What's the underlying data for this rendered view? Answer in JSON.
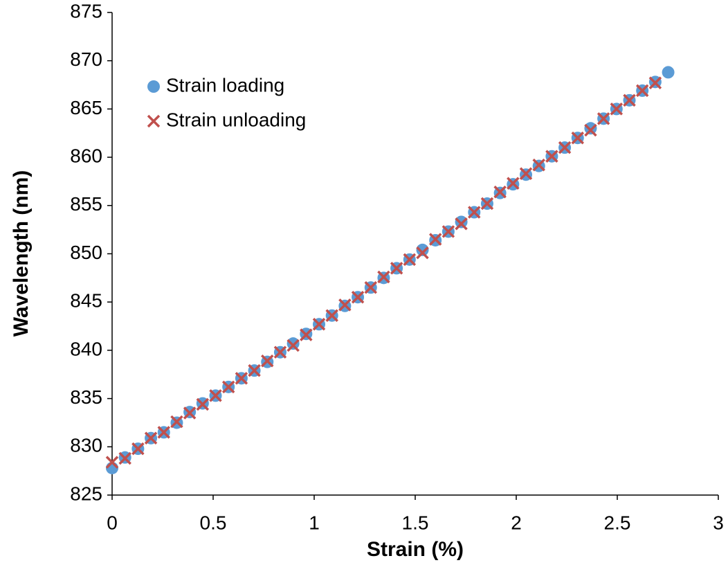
{
  "chart_data": {
    "type": "scatter",
    "x_label": "Strain (%)",
    "y_label": "Wavelength (nm)",
    "xlim": [
      0,
      3
    ],
    "xticks": [
      0,
      0.5,
      1,
      1.5,
      2,
      2.5,
      3
    ],
    "ylim": [
      825,
      875
    ],
    "yticks": [
      825,
      830,
      835,
      840,
      845,
      850,
      855,
      860,
      865,
      870,
      875
    ],
    "grid": false,
    "legend": "upper left",
    "series": [
      {
        "name": "Strain loading",
        "color": "#5b9bd5",
        "marker": "circle",
        "x": [
          0,
          0.064,
          0.128,
          0.192,
          0.256,
          0.32,
          0.384,
          0.448,
          0.512,
          0.576,
          0.64,
          0.704,
          0.768,
          0.832,
          0.896,
          0.96,
          1.024,
          1.088,
          1.152,
          1.216,
          1.28,
          1.344,
          1.408,
          1.472,
          1.536,
          1.6,
          1.664,
          1.728,
          1.792,
          1.856,
          1.92,
          1.984,
          2.048,
          2.112,
          2.176,
          2.24,
          2.304,
          2.368,
          2.432,
          2.496,
          2.56,
          2.624,
          2.688,
          2.752
        ],
        "values": [
          827.8,
          828.9,
          829.8,
          830.9,
          831.5,
          832.5,
          833.6,
          834.5,
          835.3,
          836.2,
          837.1,
          837.9,
          838.8,
          839.8,
          840.7,
          841.7,
          842.7,
          843.6,
          844.6,
          845.5,
          846.5,
          847.5,
          848.5,
          849.4,
          850.4,
          851.4,
          852.3,
          853.3,
          854.3,
          855.2,
          856.3,
          857.2,
          858.2,
          859.1,
          860.1,
          861.0,
          862.0,
          863.0,
          864.0,
          865.0,
          865.9,
          866.9,
          867.8,
          868.8
        ]
      },
      {
        "name": "Strain unloading",
        "color": "#c0504d",
        "marker": "x",
        "x": [
          0,
          0.064,
          0.128,
          0.192,
          0.256,
          0.32,
          0.384,
          0.448,
          0.512,
          0.576,
          0.64,
          0.704,
          0.768,
          0.832,
          0.896,
          0.96,
          1.024,
          1.088,
          1.152,
          1.216,
          1.28,
          1.344,
          1.408,
          1.472,
          1.536,
          1.6,
          1.664,
          1.728,
          1.792,
          1.856,
          1.92,
          1.984,
          2.048,
          2.112,
          2.176,
          2.24,
          2.304,
          2.368,
          2.432,
          2.496,
          2.56,
          2.624,
          2.688
        ],
        "values": [
          828.4,
          828.8,
          829.8,
          830.9,
          831.5,
          832.6,
          833.5,
          834.4,
          835.3,
          836.2,
          837.1,
          837.9,
          838.9,
          839.8,
          840.5,
          841.6,
          842.7,
          843.6,
          844.7,
          845.5,
          846.5,
          847.6,
          848.5,
          849.4,
          850.1,
          851.5,
          852.3,
          853.1,
          854.3,
          855.2,
          856.4,
          857.3,
          858.3,
          859.2,
          860.1,
          861.0,
          862.0,
          862.8,
          864.0,
          865.0,
          865.9,
          866.9,
          867.7
        ]
      }
    ]
  }
}
